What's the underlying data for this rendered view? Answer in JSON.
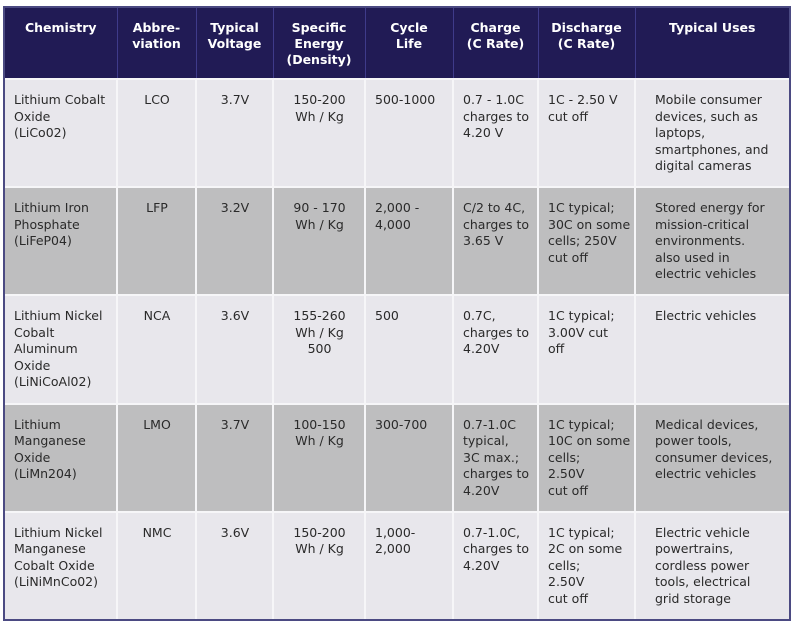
{
  "table": {
    "colors": {
      "header_bg": "#211b55",
      "header_text": "#ffffff",
      "row_light": "#e8e7ec",
      "row_dark": "#bebebf",
      "border": "#4b4a82"
    },
    "headers": [
      [
        "Chemistry"
      ],
      [
        "Abbre-",
        "viation"
      ],
      [
        "Typical",
        "Voltage"
      ],
      [
        "Specific",
        "Energy",
        "(Density)"
      ],
      [
        "Cycle",
        "Life"
      ],
      [
        "Charge",
        "(C Rate)"
      ],
      [
        "Discharge",
        "(C Rate)"
      ],
      [
        "Typical Uses"
      ]
    ],
    "rows": [
      {
        "chemistry": [
          "Lithium Cobalt",
          "Oxide",
          "(LiCo02)"
        ],
        "abbreviation": "LCO",
        "voltage": "3.7V",
        "energy": [
          "150-200",
          "Wh / Kg"
        ],
        "cycle_life": [
          "500-1000"
        ],
        "charge": [
          "0.7 - 1.0C",
          "charges to",
          "4.20 V"
        ],
        "discharge": [
          "1C - 2.50 V",
          "cut off"
        ],
        "uses": [
          "Mobile consumer",
          "devices, such as",
          "laptops,",
          "smartphones, and",
          "digital cameras"
        ]
      },
      {
        "chemistry": [
          "Lithium Iron",
          "Phosphate",
          "(LiFeP04)"
        ],
        "abbreviation": "LFP",
        "voltage": "3.2V",
        "energy": [
          "90 - 170",
          "Wh / Kg"
        ],
        "cycle_life": [
          "2,000 -",
          "4,000"
        ],
        "charge": [
          "C/2 to 4C,",
          "charges to",
          "3.65 V"
        ],
        "discharge": [
          "1C typical;",
          "30C on some",
          "cells; 250V",
          "cut off"
        ],
        "uses": [
          "Stored energy for",
          "mission-critical",
          "environments.",
          "also used in",
          "electric vehicles"
        ]
      },
      {
        "chemistry": [
          "Lithium Nickel",
          "Cobalt",
          "Aluminum",
          "Oxide",
          "(LiNiCoAl02)"
        ],
        "abbreviation": "NCA",
        "voltage": "3.6V",
        "energy": [
          "155-260",
          "Wh / Kg",
          "500"
        ],
        "cycle_life": [
          "500"
        ],
        "charge": [
          "0.7C,",
          "charges to",
          "4.20V"
        ],
        "discharge": [
          "1C typical;",
          "3.00V cut",
          "off"
        ],
        "uses": [
          "Electric vehicles"
        ]
      },
      {
        "chemistry": [
          "Lithium",
          "Manganese",
          "Oxide",
          "(LiMn204)"
        ],
        "abbreviation": "LMO",
        "voltage": "3.7V",
        "energy": [
          "100-150",
          "Wh / Kg"
        ],
        "cycle_life": [
          "300-700"
        ],
        "charge": [
          "0.7-1.0C",
          "typical,",
          "3C max.;",
          "charges to",
          "4.20V"
        ],
        "discharge": [
          "1C typical;",
          "10C on some",
          "cells;",
          "2.50V",
          "cut off"
        ],
        "uses": [
          "Medical devices,",
          "power tools,",
          "consumer devices,",
          "electric vehicles"
        ]
      },
      {
        "chemistry": [
          "Lithium Nickel",
          "Manganese",
          "Cobalt Oxide",
          "(LiNiMnCo02)"
        ],
        "abbreviation": "NMC",
        "voltage": "3.6V",
        "energy": [
          "150-200",
          "Wh / Kg"
        ],
        "cycle_life": [
          "1,000-",
          "2,000"
        ],
        "charge": [
          "0.7-1.0C,",
          "charges to",
          "4.20V"
        ],
        "discharge": [
          "1C typical;",
          "2C on some",
          "cells;",
          "2.50V",
          "cut off"
        ],
        "uses": [
          "Electric vehicle",
          "powertrains,",
          "cordless power",
          "tools, electrical",
          "grid storage"
        ]
      }
    ]
  }
}
